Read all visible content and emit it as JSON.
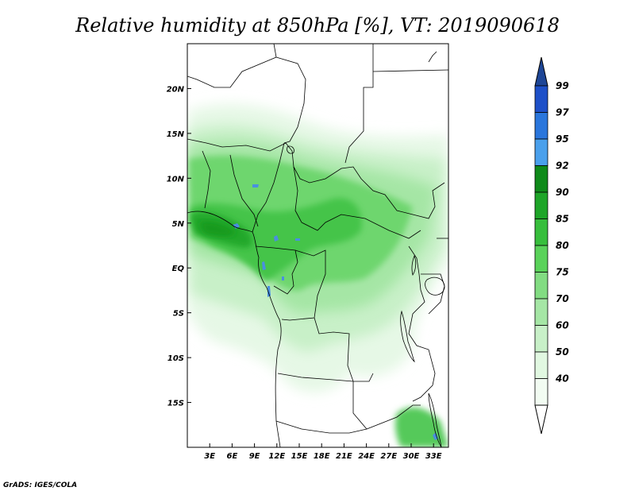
{
  "title": "Relative humidity at 850hPa [%], VT: 2019090618",
  "credit": "GrADS: IGES/COLA",
  "map": {
    "variable": "Relative humidity",
    "level": "850hPa",
    "units": "%",
    "valid_time": "2019090618",
    "lon_range": [
      0,
      35
    ],
    "lat_range": [
      -20,
      25
    ],
    "lat_ticks": [
      {
        "value": 20,
        "label": "20N"
      },
      {
        "value": 15,
        "label": "15N"
      },
      {
        "value": 10,
        "label": "10N"
      },
      {
        "value": 5,
        "label": "5N"
      },
      {
        "value": 0,
        "label": "EQ"
      },
      {
        "value": -5,
        "label": "5S"
      },
      {
        "value": -10,
        "label": "10S"
      },
      {
        "value": -15,
        "label": "15S"
      }
    ],
    "lon_ticks": [
      {
        "value": 3,
        "label": "3E"
      },
      {
        "value": 6,
        "label": "6E"
      },
      {
        "value": 9,
        "label": "9E"
      },
      {
        "value": 12,
        "label": "12E"
      },
      {
        "value": 15,
        "label": "15E"
      },
      {
        "value": 18,
        "label": "18E"
      },
      {
        "value": 21,
        "label": "21E"
      },
      {
        "value": 24,
        "label": "24E"
      },
      {
        "value": 27,
        "label": "27E"
      },
      {
        "value": 30,
        "label": "30E"
      },
      {
        "value": 33,
        "label": "33E"
      }
    ]
  },
  "colorbar": {
    "levels": [
      {
        "label": "99",
        "color": "#1e50c8"
      },
      {
        "label": "97",
        "color": "#2a76dc"
      },
      {
        "label": "95",
        "color": "#4aa0ec"
      },
      {
        "label": "92",
        "color": "#0f8a1a"
      },
      {
        "label": "90",
        "color": "#1ea528"
      },
      {
        "label": "85",
        "color": "#37be3c"
      },
      {
        "label": "80",
        "color": "#5ad25a"
      },
      {
        "label": "75",
        "color": "#82dc82"
      },
      {
        "label": "70",
        "color": "#a5e6a5"
      },
      {
        "label": "60",
        "color": "#c8f0c8"
      },
      {
        "label": "50",
        "color": "#e1f8e1"
      },
      {
        "label": "40",
        "color": "#f2fcf2"
      }
    ],
    "top_cap_color": "#1e4696",
    "bottom_cap_color": "#ffffff"
  }
}
